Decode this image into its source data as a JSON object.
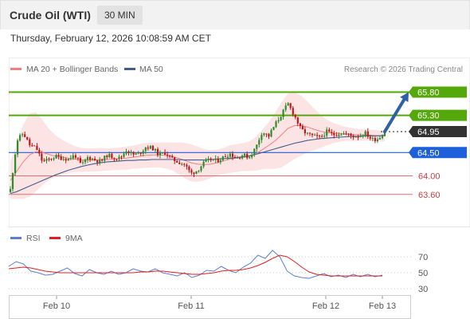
{
  "header": {
    "title": "Crude Oil (WTI)",
    "timeframe": "30 MIN"
  },
  "date_line": "Thursday, February 12, 2026 10:08:59 AM CET",
  "legend": {
    "ma20": "MA 20 + Bollinger Bands",
    "ma50": "MA 50",
    "copyright": "Research © 2026 Trading Central"
  },
  "rsi_legend": {
    "rsi": "RSI",
    "ma9": "9MA"
  },
  "colors": {
    "ma20": "#f08080",
    "ma50": "#3f5d8f",
    "bollinger_fill": "#fde4e4",
    "resistance": "#55a80a",
    "current": "#333333",
    "pivot": "#1e5fdc",
    "support": "#e07070",
    "arrow": "#2f5fa6",
    "rsi": "#5b7fd6",
    "rsi_ma": "#e02020",
    "candle_up": "#2e8b2e",
    "candle_down": "#c01818"
  },
  "chart_data": [
    {
      "type": "candlestick",
      "title": "Crude Oil (WTI)",
      "interval": "30 MIN",
      "ylim": [
        63.15,
        66.1
      ],
      "x_ticks": [
        "Feb 10",
        "Feb 11",
        "Feb 12",
        "Feb 13"
      ],
      "levels": [
        {
          "name": "resistance_2",
          "value": 65.8,
          "label": "65.80",
          "style": "resistance"
        },
        {
          "name": "resistance_1",
          "value": 65.3,
          "label": "65.30",
          "style": "resistance"
        },
        {
          "name": "current",
          "value": 64.95,
          "label": "64.95",
          "style": "current"
        },
        {
          "name": "pivot",
          "value": 64.5,
          "label": "64.50",
          "style": "pivot"
        },
        {
          "name": "support_1",
          "value": 64.0,
          "label": "64.00",
          "style": "support"
        },
        {
          "name": "support_2",
          "value": 63.6,
          "label": "63.60",
          "style": "support"
        }
      ],
      "forecast_arrow": {
        "from": 64.95,
        "to": 65.8
      },
      "price_path": [
        63.7,
        64.75,
        64.92,
        64.66,
        64.6,
        64.3,
        64.35,
        64.42,
        64.38,
        64.36,
        64.45,
        64.22,
        64.4,
        64.35,
        64.3,
        64.45,
        64.4,
        64.38,
        64.56,
        64.45,
        64.48,
        64.62,
        64.6,
        64.45,
        64.5,
        64.36,
        64.3,
        64.24,
        64.05,
        64.12,
        64.28,
        64.35,
        64.32,
        64.4,
        64.48,
        64.38,
        64.45,
        64.4,
        64.6,
        64.95,
        64.85,
        65.1,
        65.32,
        65.55,
        65.3,
        65.0,
        64.9,
        64.85,
        64.82,
        64.95,
        64.88,
        64.92,
        64.9,
        64.85,
        64.86,
        64.92,
        64.78,
        64.8,
        64.95
      ],
      "ma20": [
        63.9,
        64.1,
        64.3,
        64.45,
        64.52,
        64.5,
        64.46,
        64.42,
        64.4,
        64.38,
        64.36,
        64.34,
        64.34,
        64.34,
        64.35,
        64.35,
        64.36,
        64.37,
        64.38,
        64.4,
        64.42,
        64.44,
        64.45,
        64.45,
        64.44,
        64.42,
        64.38,
        64.33,
        64.28,
        64.25,
        64.24,
        64.25,
        64.28,
        64.32,
        64.36,
        64.38,
        64.4,
        64.42,
        64.47,
        64.56,
        64.65,
        64.75,
        64.88,
        65.02,
        65.08,
        65.08,
        65.05,
        65.0,
        64.96,
        64.93,
        64.92,
        64.91,
        64.9,
        64.89,
        64.88,
        64.88,
        64.87,
        64.86,
        64.86
      ],
      "ma50": [
        63.62,
        63.66,
        63.72,
        63.78,
        63.84,
        63.9,
        63.96,
        64.02,
        64.07,
        64.12,
        64.16,
        64.2,
        64.23,
        64.26,
        64.28,
        64.3,
        64.31,
        64.32,
        64.33,
        64.33,
        64.34,
        64.34,
        64.35,
        64.35,
        64.35,
        64.35,
        64.35,
        64.34,
        64.34,
        64.34,
        64.34,
        64.35,
        64.36,
        64.37,
        64.38,
        64.39,
        64.41,
        64.43,
        64.46,
        64.5,
        64.54,
        64.58,
        64.62,
        64.66,
        64.7,
        64.73,
        64.76,
        64.78,
        64.8,
        64.81,
        64.82,
        64.83,
        64.84,
        64.85,
        64.85,
        64.86,
        64.86,
        64.86,
        64.87
      ],
      "bb_width": [
        0.4,
        0.6,
        0.8,
        0.9,
        0.85,
        0.7,
        0.55,
        0.45,
        0.38,
        0.32,
        0.28,
        0.26,
        0.25,
        0.25,
        0.25,
        0.24,
        0.24,
        0.24,
        0.25,
        0.25,
        0.26,
        0.27,
        0.27,
        0.27,
        0.28,
        0.3,
        0.34,
        0.38,
        0.4,
        0.38,
        0.34,
        0.3,
        0.28,
        0.28,
        0.3,
        0.3,
        0.3,
        0.32,
        0.36,
        0.42,
        0.5,
        0.6,
        0.7,
        0.75,
        0.72,
        0.65,
        0.55,
        0.45,
        0.36,
        0.28,
        0.22,
        0.18,
        0.15,
        0.14,
        0.13,
        0.12,
        0.12,
        0.12,
        0.12
      ]
    },
    {
      "type": "line",
      "title": "RSI",
      "ylim": [
        24,
        80
      ],
      "y_ticks": [
        70,
        50,
        30
      ],
      "series": [
        {
          "name": "RSI",
          "values": [
            58,
            64,
            61,
            52,
            50,
            47,
            48,
            52,
            56,
            49,
            46,
            54,
            50,
            48,
            52,
            48,
            50,
            55,
            52,
            51,
            55,
            50,
            48,
            46,
            50,
            44,
            47,
            53,
            52,
            58,
            53,
            50,
            57,
            62,
            72,
            68,
            78,
            70,
            52,
            46,
            44,
            43,
            46,
            49,
            45,
            47,
            44,
            48,
            45,
            48,
            45,
            47
          ]
        },
        {
          "name": "9MA",
          "values": [
            55,
            56,
            57,
            56,
            54,
            52,
            51,
            50,
            50,
            50,
            50,
            50,
            50,
            50,
            50,
            50,
            50,
            50,
            51,
            51,
            52,
            52,
            51,
            50,
            49,
            48,
            48,
            49,
            50,
            52,
            53,
            53,
            54,
            56,
            59,
            63,
            68,
            72,
            70,
            64,
            57,
            51,
            48,
            47,
            46,
            46,
            46,
            46,
            46,
            46,
            46,
            46
          ]
        }
      ]
    }
  ]
}
